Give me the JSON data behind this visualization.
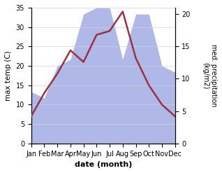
{
  "months": [
    "Jan",
    "Feb",
    "Mar",
    "Apr",
    "May",
    "Jun",
    "Jul",
    "Aug",
    "Sep",
    "Oct",
    "Nov",
    "Dec"
  ],
  "temperature": [
    7,
    13,
    18,
    24,
    21,
    28,
    29,
    34,
    22,
    15,
    10,
    7
  ],
  "precipitation": [
    8,
    7,
    12,
    13,
    20,
    21,
    21,
    13,
    20,
    20,
    12,
    11
  ],
  "temp_color": "#993344",
  "precip_color": "#b0b8e8",
  "ylabel_left": "max temp (C)",
  "ylabel_right": "med. precipitation\n(kg/m2)",
  "xlabel": "date (month)",
  "ylim_left": [
    0,
    35
  ],
  "ylim_right": [
    0,
    21
  ],
  "yticks_left": [
    0,
    5,
    10,
    15,
    20,
    25,
    30,
    35
  ],
  "yticks_right": [
    0,
    5,
    10,
    15,
    20
  ]
}
